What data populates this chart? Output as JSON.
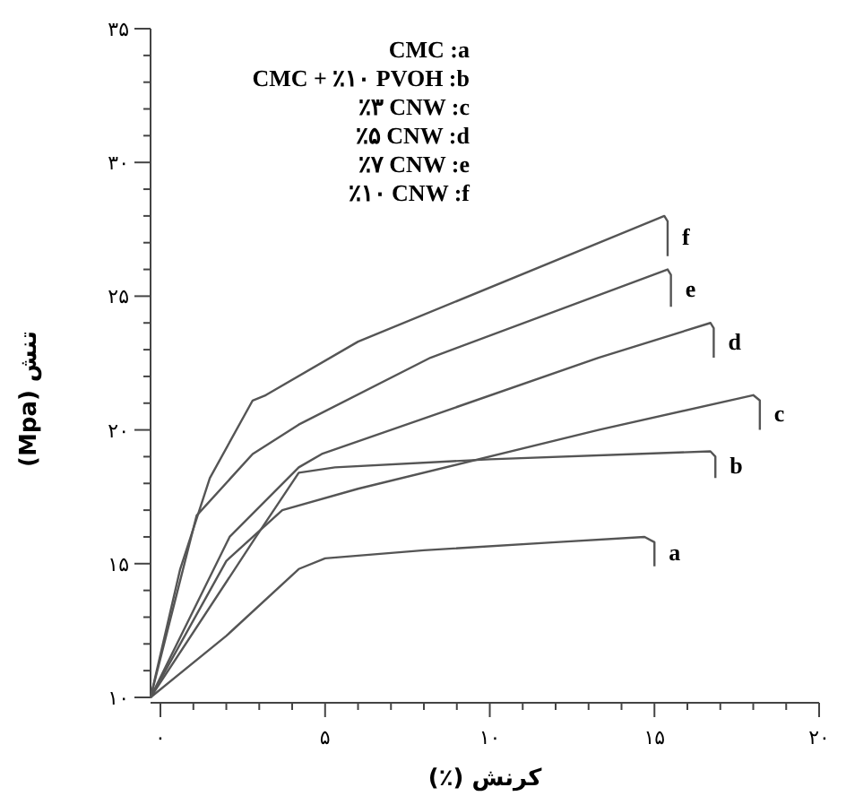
{
  "chart_data": {
    "type": "line",
    "xlabel": "کرنش (٪)",
    "ylabel": "تنش (Mpa)",
    "xlim": [
      -0.3,
      20
    ],
    "ylim": [
      10,
      35
    ],
    "xticks": [
      {
        "value": 0,
        "label": "۰"
      },
      {
        "value": 5,
        "label": "۵"
      },
      {
        "value": 10,
        "label": "۱۰"
      },
      {
        "value": 15,
        "label": "۱۵"
      },
      {
        "value": 20,
        "label": "۲۰"
      }
    ],
    "yticks": [
      {
        "value": 10,
        "label": "۱۰"
      },
      {
        "value": 15,
        "label": "۱۵"
      },
      {
        "value": 20,
        "label": "۲۰"
      },
      {
        "value": 25,
        "label": "۲۵"
      },
      {
        "value": 30,
        "label": "۳۰"
      },
      {
        "value": 35,
        "label": "۳۵"
      }
    ],
    "grid": false,
    "legend": false,
    "marker": "none",
    "line_style": "solid",
    "annotations": [
      "CMC :a",
      "CMC + ٪۱۰ PVOH :b",
      "٪۳ CNW :c",
      "٪۵ CNW :d",
      "٪۷ CNW :e",
      "٪۱۰ CNW :f"
    ],
    "series": [
      {
        "name": "a",
        "color": "#555555",
        "x": [
          -0.3,
          2,
          4.2,
          5,
          8,
          12,
          14.7,
          15,
          15
        ],
        "values": [
          10,
          12.3,
          14.8,
          15.2,
          15.5,
          15.8,
          16.0,
          15.8,
          14.9
        ]
      },
      {
        "name": "b",
        "color": "#555555",
        "x": [
          -0.3,
          2.9,
          4.2,
          5.3,
          10,
          16.7,
          16.85,
          16.85
        ],
        "values": [
          10,
          16.0,
          18.4,
          18.6,
          18.9,
          19.2,
          19.0,
          18.2
        ]
      },
      {
        "name": "c",
        "color": "#555555",
        "x": [
          -0.3,
          2.0,
          3.7,
          6.0,
          13.3,
          18.0,
          18.2,
          18.2
        ],
        "values": [
          10,
          15.1,
          17.0,
          17.8,
          20.0,
          21.3,
          21.1,
          20.0
        ]
      },
      {
        "name": "d",
        "color": "#555555",
        "x": [
          -0.3,
          2.1,
          4.2,
          4.9,
          13.3,
          16.7,
          16.8,
          16.8
        ],
        "values": [
          10,
          16.0,
          18.6,
          19.1,
          22.7,
          24.0,
          23.8,
          22.7
        ]
      },
      {
        "name": "e",
        "color": "#555555",
        "x": [
          -0.3,
          1.1,
          2.8,
          4.2,
          8.2,
          15.4,
          15.5,
          15.5
        ],
        "values": [
          10,
          16.8,
          19.1,
          20.2,
          22.7,
          26.0,
          25.8,
          24.6
        ]
      },
      {
        "name": "f",
        "color": "#555555",
        "x": [
          -0.3,
          0.6,
          1.5,
          2.8,
          3.2,
          6.0,
          15.3,
          15.4,
          15.4
        ],
        "values": [
          10,
          14.8,
          18.2,
          21.1,
          21.3,
          23.3,
          28.0,
          27.8,
          26.5
        ]
      }
    ]
  }
}
